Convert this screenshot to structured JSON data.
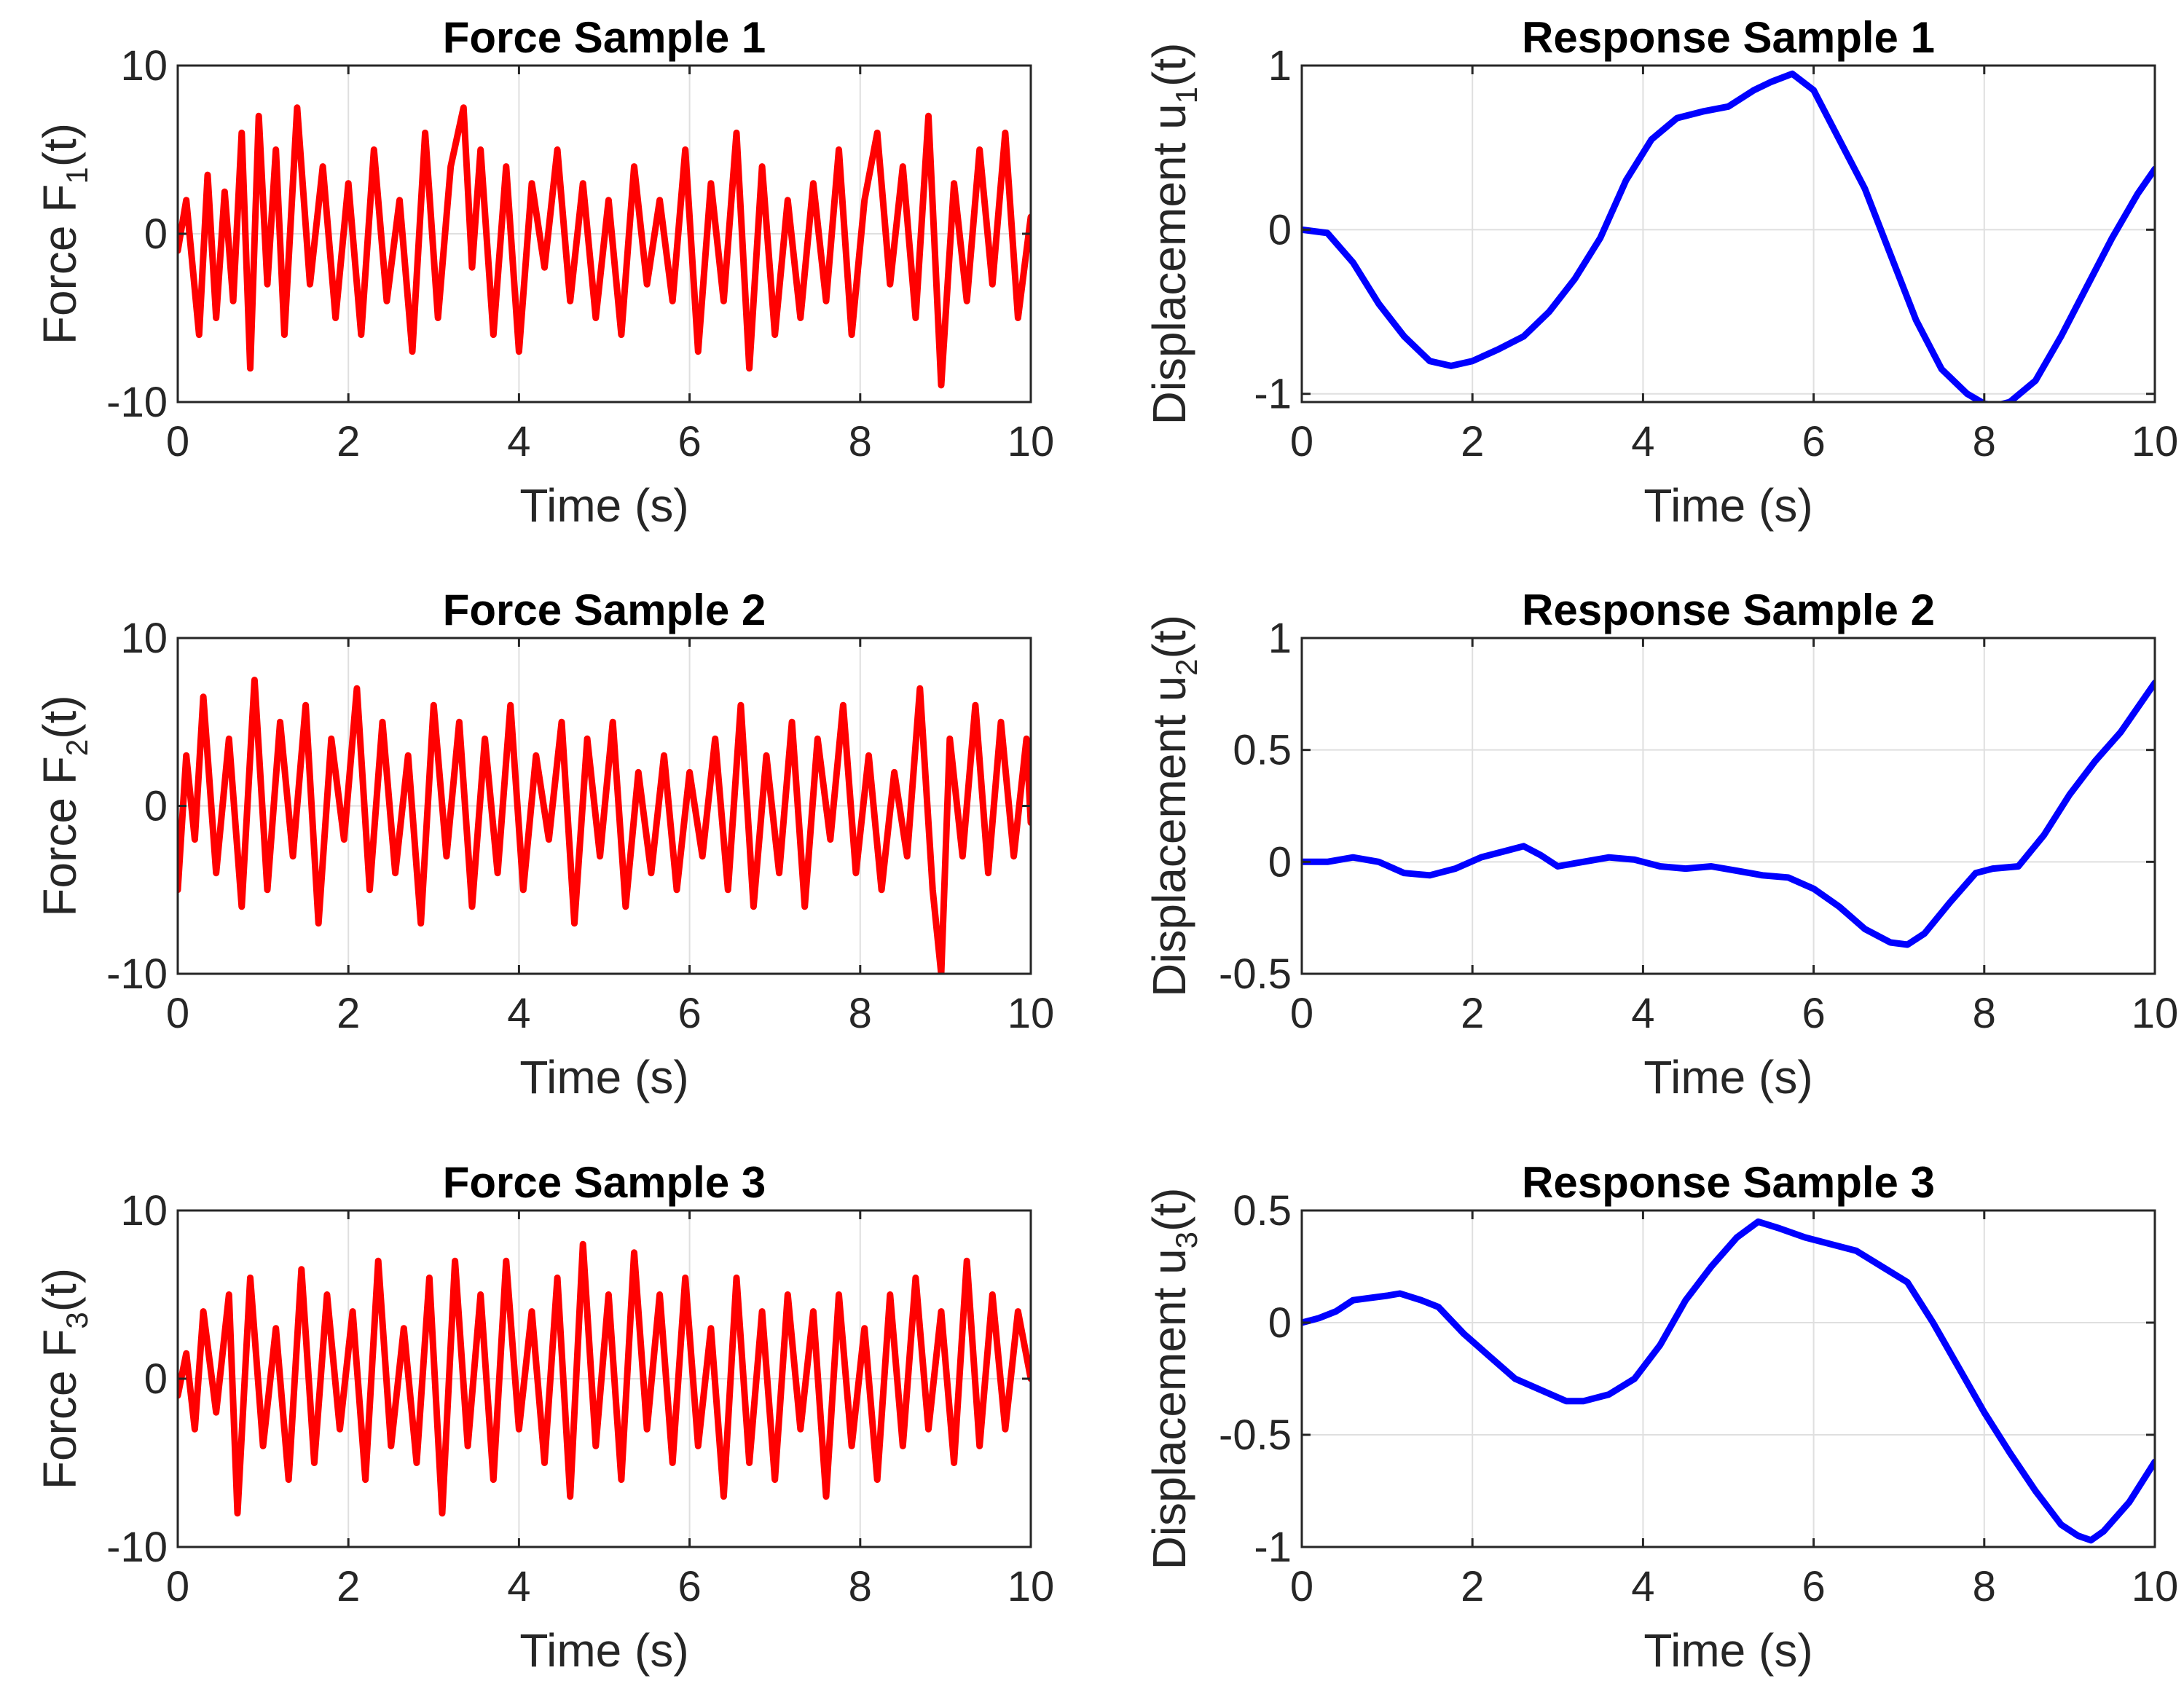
{
  "chart_data": [
    {
      "type": "line",
      "title": "Force Sample 1",
      "xlabel": "Time (s)",
      "ylabel": {
        "pre": "Force F",
        "sub": "1",
        "post": "(t)"
      },
      "xlim": [
        0,
        10
      ],
      "ylim": [
        -10,
        10
      ],
      "xticks": [
        0,
        2,
        4,
        6,
        8,
        10
      ],
      "yticks": [
        -10,
        0,
        10
      ],
      "yticklabels": [
        "-10",
        "0",
        "10"
      ],
      "grid": true,
      "series": [
        {
          "color": "#ff0000",
          "x": [
            0,
            0.1,
            0.25,
            0.35,
            0.45,
            0.55,
            0.65,
            0.75,
            0.85,
            0.95,
            1.05,
            1.15,
            1.25,
            1.4,
            1.55,
            1.7,
            1.85,
            2.0,
            2.15,
            2.3,
            2.45,
            2.6,
            2.75,
            2.9,
            3.05,
            3.2,
            3.35,
            3.45,
            3.55,
            3.7,
            3.85,
            4.0,
            4.15,
            4.3,
            4.45,
            4.6,
            4.75,
            4.9,
            5.05,
            5.2,
            5.35,
            5.5,
            5.65,
            5.8,
            5.95,
            6.1,
            6.25,
            6.4,
            6.55,
            6.7,
            6.85,
            7.0,
            7.15,
            7.3,
            7.45,
            7.6,
            7.75,
            7.9,
            8.05,
            8.2,
            8.35,
            8.5,
            8.65,
            8.8,
            8.95,
            9.1,
            9.25,
            9.4,
            9.55,
            9.7,
            9.85,
            10
          ],
          "y": [
            -1,
            2,
            -6,
            3.5,
            -5,
            2.5,
            -4,
            6,
            -8,
            7,
            -3,
            5,
            -6,
            7.5,
            -3,
            4,
            -5,
            3,
            -6,
            5,
            -4,
            2,
            -7,
            6,
            -5,
            4,
            7.5,
            -2,
            5,
            -6,
            4,
            -7,
            3,
            -2,
            5,
            -4,
            3,
            -5,
            2,
            -6,
            4,
            -3,
            2,
            -4,
            5,
            -7,
            3,
            -4,
            6,
            -8,
            4,
            -6,
            2,
            -5,
            3,
            -4,
            5,
            -6,
            2,
            6,
            -3,
            4,
            -5,
            7,
            -9,
            3,
            -4,
            5,
            -3,
            6,
            -5,
            1
          ]
        }
      ]
    },
    {
      "type": "line",
      "title": "Response Sample 1",
      "xlabel": "Time (s)",
      "ylabel": {
        "pre": "Displacement u",
        "sub": "1",
        "post": "(t)"
      },
      "xlim": [
        0,
        10
      ],
      "ylim": [
        -1.05,
        1
      ],
      "xticks": [
        0,
        2,
        4,
        6,
        8,
        10
      ],
      "yticks": [
        -1,
        0,
        1
      ],
      "yticklabels": [
        "-1",
        "0",
        "1"
      ],
      "grid": true,
      "series": [
        {
          "color": "#0000ff",
          "x": [
            0,
            0.3,
            0.6,
            0.9,
            1.2,
            1.5,
            1.75,
            2.0,
            2.3,
            2.6,
            2.9,
            3.2,
            3.5,
            3.8,
            4.1,
            4.4,
            4.7,
            5.0,
            5.3,
            5.5,
            5.75,
            6.0,
            6.3,
            6.6,
            6.9,
            7.2,
            7.5,
            7.8,
            8.0,
            8.15,
            8.3,
            8.6,
            8.9,
            9.2,
            9.5,
            9.8,
            10
          ],
          "y": [
            0,
            -0.02,
            -0.2,
            -0.45,
            -0.65,
            -0.8,
            -0.83,
            -0.8,
            -0.73,
            -0.65,
            -0.5,
            -0.3,
            -0.05,
            0.3,
            0.55,
            0.68,
            0.72,
            0.75,
            0.85,
            0.9,
            0.95,
            0.85,
            0.55,
            0.25,
            -0.15,
            -0.55,
            -0.85,
            -1.0,
            -1.06,
            -1.07,
            -1.05,
            -0.92,
            -0.65,
            -0.35,
            -0.05,
            0.22,
            0.37
          ]
        }
      ]
    },
    {
      "type": "line",
      "title": "Force Sample 2",
      "xlabel": "Time (s)",
      "ylabel": {
        "pre": "Force F",
        "sub": "2",
        "post": "(t)"
      },
      "xlim": [
        0,
        10
      ],
      "ylim": [
        -10,
        10
      ],
      "xticks": [
        0,
        2,
        4,
        6,
        8,
        10
      ],
      "yticks": [
        -10,
        0,
        10
      ],
      "yticklabels": [
        "-10",
        "0",
        "10"
      ],
      "grid": true,
      "series": [
        {
          "color": "#ff0000",
          "x": [
            0,
            0.1,
            0.2,
            0.3,
            0.45,
            0.6,
            0.75,
            0.9,
            1.05,
            1.2,
            1.35,
            1.5,
            1.65,
            1.8,
            1.95,
            2.1,
            2.25,
            2.4,
            2.55,
            2.7,
            2.85,
            3.0,
            3.15,
            3.3,
            3.45,
            3.6,
            3.75,
            3.9,
            4.05,
            4.2,
            4.35,
            4.5,
            4.65,
            4.8,
            4.95,
            5.1,
            5.25,
            5.4,
            5.55,
            5.7,
            5.85,
            6.0,
            6.15,
            6.3,
            6.45,
            6.6,
            6.75,
            6.9,
            7.05,
            7.2,
            7.35,
            7.5,
            7.65,
            7.8,
            7.95,
            8.1,
            8.25,
            8.4,
            8.55,
            8.7,
            8.85,
            8.95,
            9.05,
            9.2,
            9.35,
            9.5,
            9.65,
            9.8,
            9.95,
            10
          ],
          "y": [
            -5,
            3,
            -2,
            6.5,
            -4,
            4,
            -6,
            7.5,
            -5,
            5,
            -3,
            6,
            -7,
            4,
            -2,
            7,
            -5,
            5,
            -4,
            3,
            -7,
            6,
            -3,
            5,
            -6,
            4,
            -4,
            6,
            -5,
            3,
            -2,
            5,
            -7,
            4,
            -3,
            5,
            -6,
            2,
            -4,
            3,
            -5,
            2,
            -3,
            4,
            -5,
            6,
            -6,
            3,
            -4,
            5,
            -6,
            4,
            -2,
            6,
            -4,
            3,
            -5,
            2,
            -3,
            7,
            -5,
            -10,
            4,
            -3,
            6,
            -4,
            5,
            -3,
            4,
            -1
          ]
        }
      ]
    },
    {
      "type": "line",
      "title": "Response Sample 2",
      "xlabel": "Time (s)",
      "ylabel": {
        "pre": "Displacement u",
        "sub": "2",
        "post": "(t)"
      },
      "xlim": [
        0,
        10
      ],
      "ylim": [
        -0.5,
        1
      ],
      "xticks": [
        0,
        2,
        4,
        6,
        8,
        10
      ],
      "yticks": [
        -0.5,
        0,
        0.5,
        1
      ],
      "yticklabels": [
        "-0.5",
        "0",
        "0.5",
        "1"
      ],
      "grid": true,
      "series": [
        {
          "color": "#0000ff",
          "x": [
            0,
            0.3,
            0.6,
            0.9,
            1.2,
            1.5,
            1.8,
            2.1,
            2.4,
            2.6,
            2.8,
            3.0,
            3.3,
            3.6,
            3.9,
            4.2,
            4.5,
            4.8,
            5.1,
            5.4,
            5.7,
            6.0,
            6.3,
            6.6,
            6.9,
            7.1,
            7.3,
            7.6,
            7.9,
            8.1,
            8.4,
            8.7,
            9.0,
            9.3,
            9.6,
            10
          ],
          "y": [
            0,
            0,
            0.02,
            0,
            -0.05,
            -0.06,
            -0.03,
            0.02,
            0.05,
            0.07,
            0.03,
            -0.02,
            0,
            0.02,
            0.01,
            -0.02,
            -0.03,
            -0.02,
            -0.04,
            -0.06,
            -0.07,
            -0.12,
            -0.2,
            -0.3,
            -0.36,
            -0.37,
            -0.32,
            -0.18,
            -0.05,
            -0.03,
            -0.02,
            0.12,
            0.3,
            0.45,
            0.58,
            0.8
          ]
        }
      ]
    },
    {
      "type": "line",
      "title": "Force Sample 3",
      "xlabel": "Time (s)",
      "ylabel": {
        "pre": "Force F",
        "sub": "3",
        "post": "(t)"
      },
      "xlim": [
        0,
        10
      ],
      "ylim": [
        -10,
        10
      ],
      "xticks": [
        0,
        2,
        4,
        6,
        8,
        10
      ],
      "yticks": [
        -10,
        0,
        10
      ],
      "yticklabels": [
        "-10",
        "0",
        "10"
      ],
      "grid": true,
      "series": [
        {
          "color": "#ff0000",
          "x": [
            0,
            0.1,
            0.2,
            0.3,
            0.45,
            0.6,
            0.7,
            0.85,
            1.0,
            1.15,
            1.3,
            1.45,
            1.6,
            1.75,
            1.9,
            2.05,
            2.2,
            2.35,
            2.5,
            2.65,
            2.8,
            2.95,
            3.1,
            3.25,
            3.4,
            3.55,
            3.7,
            3.85,
            4.0,
            4.15,
            4.3,
            4.45,
            4.6,
            4.75,
            4.9,
            5.05,
            5.2,
            5.35,
            5.5,
            5.65,
            5.8,
            5.95,
            6.1,
            6.25,
            6.4,
            6.55,
            6.7,
            6.85,
            7.0,
            7.15,
            7.3,
            7.45,
            7.6,
            7.75,
            7.9,
            8.05,
            8.2,
            8.35,
            8.5,
            8.65,
            8.8,
            8.95,
            9.1,
            9.25,
            9.4,
            9.55,
            9.7,
            9.85,
            10
          ],
          "y": [
            -1,
            1.5,
            -3,
            4,
            -2,
            5,
            -8,
            6,
            -4,
            3,
            -6,
            6.5,
            -5,
            5,
            -3,
            4,
            -6,
            7,
            -4,
            3,
            -5,
            6,
            -8,
            7,
            -4,
            5,
            -6,
            7,
            -3,
            4,
            -5,
            6,
            -7,
            8,
            -4,
            5,
            -6,
            7.5,
            -3,
            5,
            -5,
            6,
            -4,
            3,
            -7,
            6,
            -5,
            4,
            -6,
            5,
            -3,
            4,
            -7,
            5,
            -4,
            3,
            -6,
            5,
            -4,
            6,
            -3,
            4,
            -5,
            7,
            -4,
            5,
            -3,
            4,
            0
          ]
        }
      ]
    },
    {
      "type": "line",
      "title": "Response Sample 3",
      "xlabel": "Time (s)",
      "ylabel": {
        "pre": "Displacement u",
        "sub": "3",
        "post": "(t)"
      },
      "xlim": [
        0,
        10
      ],
      "ylim": [
        -1,
        0.5
      ],
      "xticks": [
        0,
        2,
        4,
        6,
        8,
        10
      ],
      "yticks": [
        -1,
        -0.5,
        0,
        0.5
      ],
      "yticklabels": [
        "-1",
        "-0.5",
        "0",
        "0.5"
      ],
      "grid": true,
      "series": [
        {
          "color": "#0000ff",
          "x": [
            0,
            0.2,
            0.4,
            0.6,
            0.8,
            1.0,
            1.15,
            1.4,
            1.6,
            1.9,
            2.2,
            2.5,
            2.8,
            3.1,
            3.3,
            3.6,
            3.9,
            4.2,
            4.5,
            4.8,
            5.1,
            5.35,
            5.6,
            5.9,
            6.2,
            6.5,
            6.8,
            7.1,
            7.4,
            7.7,
            8.0,
            8.3,
            8.6,
            8.9,
            9.1,
            9.25,
            9.4,
            9.7,
            10
          ],
          "y": [
            0,
            0.02,
            0.05,
            0.1,
            0.11,
            0.12,
            0.13,
            0.1,
            0.07,
            -0.05,
            -0.15,
            -0.25,
            -0.3,
            -0.35,
            -0.35,
            -0.32,
            -0.25,
            -0.1,
            0.1,
            0.25,
            0.38,
            0.45,
            0.42,
            0.38,
            0.35,
            0.32,
            0.25,
            0.18,
            0.0,
            -0.2,
            -0.4,
            -0.58,
            -0.75,
            -0.9,
            -0.95,
            -0.97,
            -0.93,
            -0.8,
            -0.62
          ]
        }
      ]
    }
  ]
}
